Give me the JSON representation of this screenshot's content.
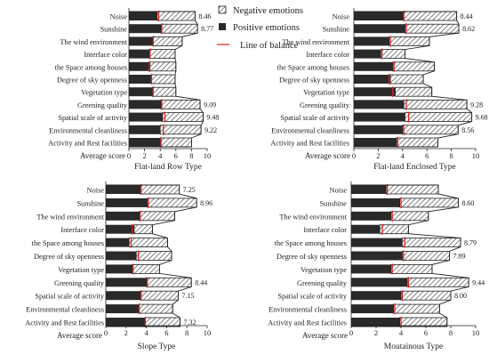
{
  "legend": {
    "negative": "Negative emotions",
    "positive": "Positive emotions",
    "balance": "Line of balance",
    "balance_color": "#e02020"
  },
  "colors": {
    "positive_fill": "#2a2a2a",
    "negative_fill": "#ffffff",
    "hatch_stroke": "#444444",
    "outline": "#222222"
  },
  "categories": [
    "Noise",
    "Sunshine",
    "The wind environment",
    "Interface color",
    "the Space among houses",
    "Degree of sky openness",
    "Vegetation type",
    "Greening quality",
    "Spatial scale of activity",
    "Environmental cleanliness",
    "Activity and Rest facilities"
  ],
  "chart_data": [
    {
      "type": "bar",
      "title": "Flat-land Row Type",
      "xlabel": "Average score",
      "xlim": [
        0,
        10
      ],
      "xticks": [
        0,
        2,
        4,
        6,
        8,
        10
      ],
      "series": [
        {
          "name": "Positive emotions",
          "values": [
            3.6,
            4.1,
            3.1,
            2.6,
            2.7,
            2.9,
            3.0,
            4.1,
            4.3,
            4.0,
            4.1
          ]
        },
        {
          "name": "Negative emotions",
          "values": [
            4.86,
            4.67,
            3.7,
            3.3,
            3.3,
            3.0,
            3.0,
            5.0,
            5.18,
            5.22,
            3.9
          ]
        }
      ],
      "balance": [
        3.8,
        4.2,
        3.1,
        2.7,
        2.6,
        2.9,
        3.1,
        4.2,
        4.6,
        4.4,
        4.1
      ],
      "labels": [
        "8.46",
        "8.77",
        "",
        "",
        "",
        "",
        "",
        "9.09",
        "9.48",
        "9.22",
        ""
      ]
    },
    {
      "type": "bar",
      "title": "Flat-land Enclosed Type",
      "xlabel": "Average score",
      "xlim": [
        0,
        10
      ],
      "xticks": [
        0,
        2,
        4,
        6,
        8,
        10
      ],
      "series": [
        {
          "name": "Positive emotions",
          "values": [
            4.1,
            4.2,
            2.9,
            2.2,
            3.2,
            3.0,
            3.4,
            4.1,
            4.2,
            4.0,
            3.5
          ]
        },
        {
          "name": "Negative emotions",
          "values": [
            4.34,
            4.42,
            3.3,
            2.0,
            3.4,
            2.7,
            3.0,
            5.18,
            5.48,
            4.56,
            3.4
          ]
        }
      ],
      "balance": [
        4.1,
        4.3,
        3.0,
        2.3,
        3.3,
        2.9,
        3.2,
        4.3,
        4.5,
        4.1,
        3.6
      ],
      "labels": [
        "8.44",
        "8.62",
        "",
        "",
        "",
        "",
        "",
        "9.28",
        "9.68",
        "8.56",
        ""
      ]
    },
    {
      "type": "bar",
      "title": "Slope Type",
      "xlabel": "Average score",
      "xlim": [
        0,
        10
      ],
      "xticks": [
        0,
        2,
        4,
        6,
        8,
        10
      ],
      "series": [
        {
          "name": "Positive emotions",
          "values": [
            3.4,
            4.1,
            3.3,
            2.8,
            2.3,
            3.0,
            2.6,
            4.0,
            3.4,
            3.3,
            3.9
          ]
        },
        {
          "name": "Negative emotions",
          "values": [
            3.85,
            4.86,
            3.5,
            1.8,
            3.8,
            3.5,
            2.7,
            4.44,
            3.75,
            3.3,
            3.42
          ]
        }
      ],
      "balance": [
        3.5,
        4.2,
        3.4,
        2.6,
        2.5,
        3.2,
        2.7,
        4.1,
        3.5,
        3.3,
        3.9
      ],
      "labels": [
        "7.25",
        "8.96",
        "",
        "",
        "",
        "",
        "",
        "8.44",
        "7.15",
        "",
        "7.32"
      ]
    },
    {
      "type": "bar",
      "title": "Moutainous Type",
      "xlabel": "Average score",
      "xlim": [
        0,
        10
      ],
      "xticks": [
        0,
        2,
        4,
        6,
        8,
        10
      ],
      "series": [
        {
          "name": "Positive emotions",
          "values": [
            2.8,
            3.9,
            3.2,
            2.3,
            4.1,
            4.1,
            3.2,
            4.5,
            4.0,
            3.4,
            3.9
          ]
        },
        {
          "name": "Negative emotions",
          "values": [
            4.2,
            4.7,
            3.0,
            2.3,
            4.69,
            3.79,
            3.3,
            4.94,
            4.0,
            3.7,
            3.8
          ]
        }
      ],
      "balance": [
        2.9,
        4.0,
        3.3,
        2.5,
        4.3,
        4.2,
        3.3,
        4.6,
        4.1,
        3.5,
        4.0
      ],
      "labels": [
        "",
        "8.60",
        "",
        "",
        "8.79",
        "7.89",
        "",
        "9.44",
        "8.00",
        "",
        ""
      ]
    }
  ]
}
